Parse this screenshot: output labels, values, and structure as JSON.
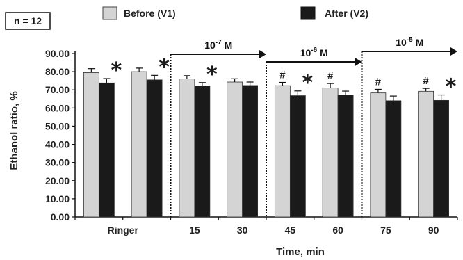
{
  "chart_data": {
    "type": "bar",
    "n_label": "n = 12",
    "ylabel": "Ethanol ratio, %",
    "xlabel": "Time, min",
    "ylim": [
      0,
      90
    ],
    "yticks": [
      "0.00",
      "10.00",
      "20.00",
      "30.00",
      "40.00",
      "50.00",
      "60.00",
      "70.00",
      "80.00",
      "90.00"
    ],
    "categories": [
      "Ringer",
      "",
      "15",
      "30",
      "45",
      "60",
      "75",
      "90"
    ],
    "series": [
      {
        "name": "Before (V1)",
        "color": "#d4d4d4",
        "values": [
          79.5,
          80.0,
          76.0,
          74.3,
          72.3,
          71.0,
          68.3,
          69.2
        ],
        "errors": [
          2.2,
          2.0,
          1.8,
          1.8,
          1.8,
          2.5,
          2.0,
          1.6
        ]
      },
      {
        "name": "After (V2)",
        "color": "#1a1a1a",
        "values": [
          73.8,
          75.5,
          72.2,
          72.4,
          66.8,
          67.2,
          64.0,
          64.2
        ],
        "errors": [
          2.4,
          2.5,
          1.8,
          1.9,
          2.6,
          2.1,
          2.6,
          3.0
        ]
      }
    ],
    "annotations": {
      "stars": [
        0,
        1,
        2,
        4,
        7
      ],
      "hashes": [
        4,
        5,
        6,
        7
      ]
    },
    "concentrations": [
      {
        "base": "10",
        "exp": "-7",
        "unit": " M",
        "from": 2,
        "to": 3
      },
      {
        "base": "10",
        "exp": "-6",
        "unit": " M",
        "from": 4,
        "to": 5
      },
      {
        "base": "10",
        "exp": "-5",
        "unit": " M",
        "from": 6,
        "to": 7
      }
    ],
    "grid": false,
    "legend_position": "top"
  }
}
